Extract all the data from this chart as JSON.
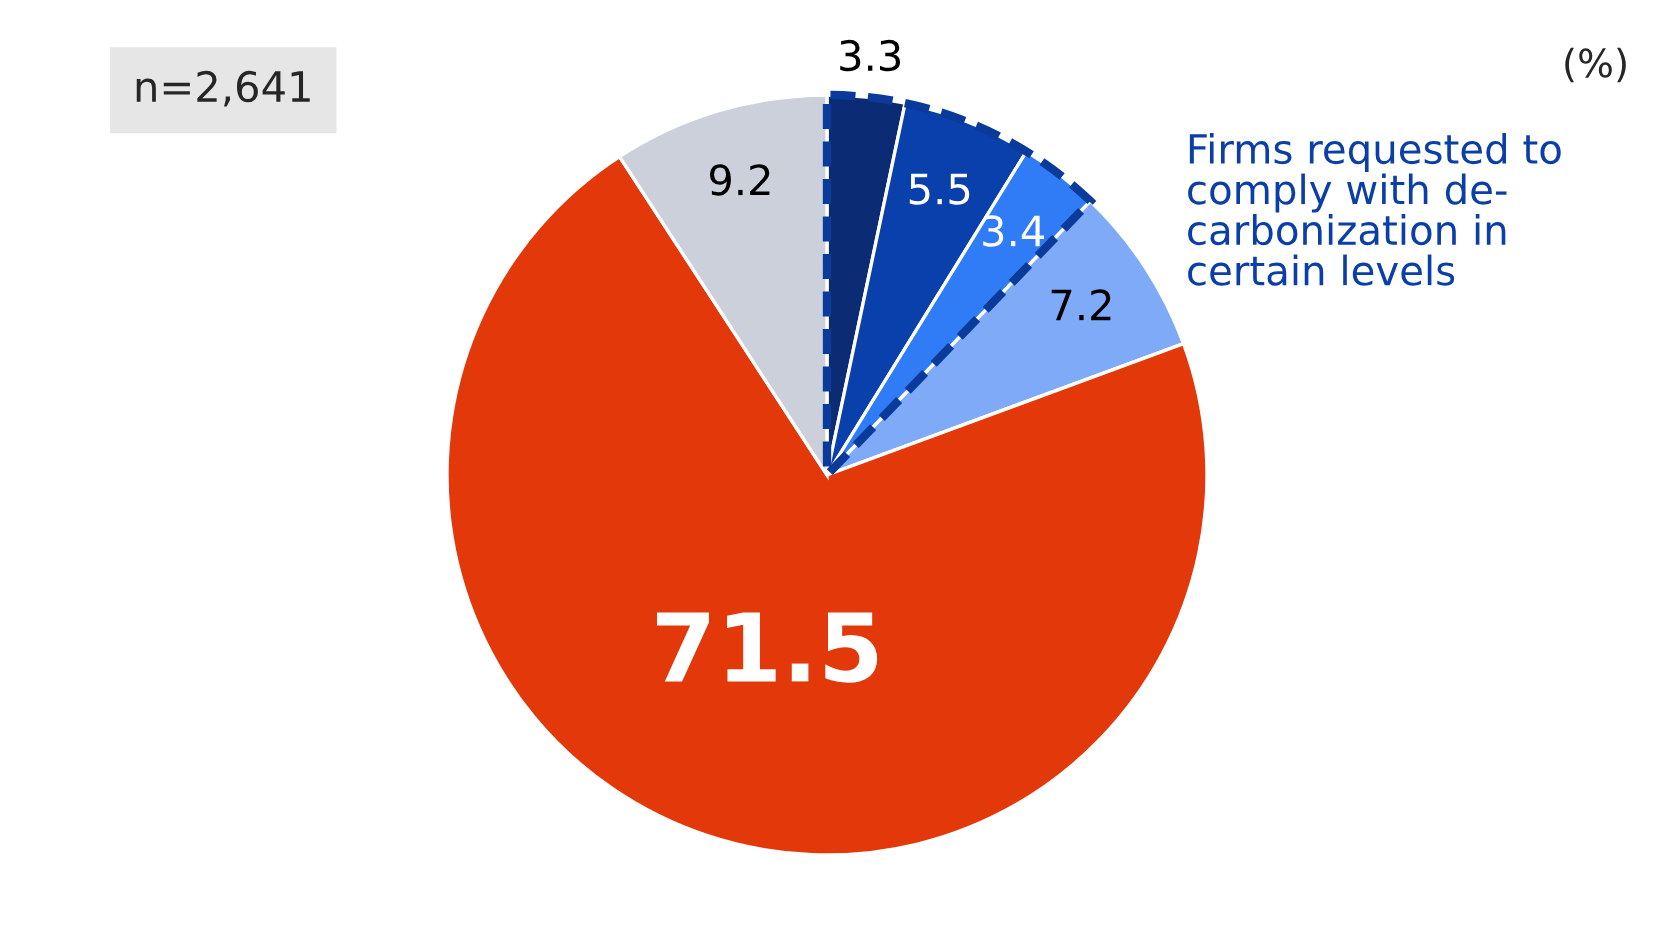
{
  "chart_data": {
    "type": "pie",
    "categories": [
      null,
      null,
      null,
      null,
      null,
      null
    ],
    "values": [
      3.3,
      5.5,
      3.4,
      7.2,
      71.5,
      9.2
    ],
    "colors": [
      "#0b2c74",
      "#0a40ac",
      "#2f7cf6",
      "#7eaaf8",
      "#e2380a",
      "#cbd0da"
    ],
    "data_labels": true,
    "annotations": [
      "(%)",
      "n=2,641",
      "Firms requested to comply with de-carbonization in certain levels"
    ]
  }
}
